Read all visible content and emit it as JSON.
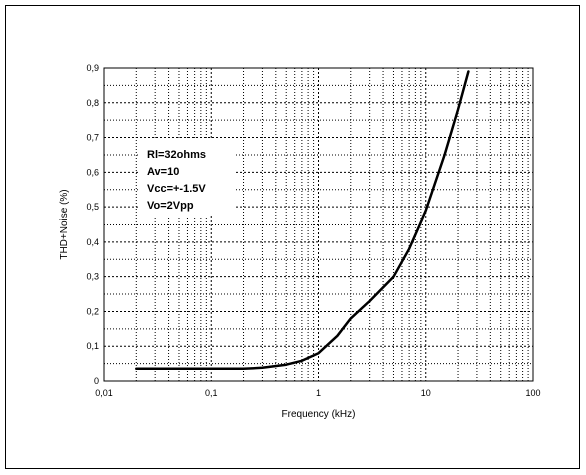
{
  "chart_data": {
    "type": "line",
    "title": "",
    "xlabel": "Frequency (kHz)",
    "ylabel": "THD+Noise (%)",
    "xscale": "log",
    "xlim": [
      0.01,
      100
    ],
    "ylim": [
      0,
      0.9
    ],
    "x_ticks": [
      0.01,
      0.1,
      1,
      10,
      100
    ],
    "x_tick_labels": [
      "0,01",
      "0,1",
      "1",
      "10",
      "100"
    ],
    "y_ticks": [
      0,
      0.1,
      0.2,
      0.3,
      0.4,
      0.5,
      0.6,
      0.7,
      0.8,
      0.9
    ],
    "y_tick_labels": [
      "0",
      "0,1",
      "0,2",
      "0,3",
      "0,4",
      "0,5",
      "0,6",
      "0,7",
      "0,8",
      "0,9"
    ],
    "grid": true,
    "grid_style": "dotted",
    "annotation": [
      "Rl=32ohms",
      "Av=10",
      "Vcc=+-1.5V",
      "Vo=2Vpp"
    ],
    "series": [
      {
        "color": "#000000",
        "x": [
          0.02,
          0.05,
          0.1,
          0.2,
          0.3,
          0.5,
          0.7,
          1,
          1.5,
          2,
          3,
          5,
          7,
          10,
          15,
          20,
          25
        ],
        "y": [
          0.035,
          0.035,
          0.035,
          0.035,
          0.038,
          0.047,
          0.058,
          0.08,
          0.13,
          0.18,
          0.23,
          0.3,
          0.38,
          0.49,
          0.65,
          0.78,
          0.89
        ]
      }
    ]
  }
}
